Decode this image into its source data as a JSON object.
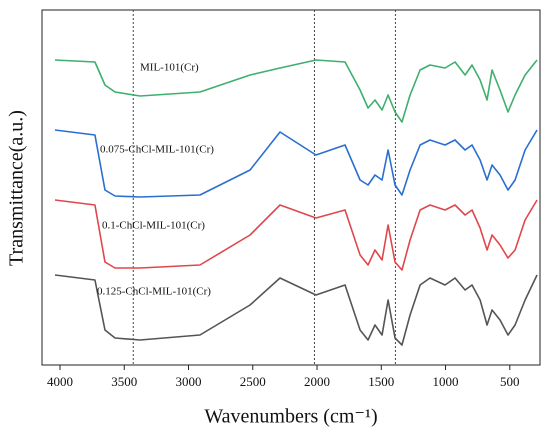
{
  "chart_data": {
    "type": "line",
    "x_label": "Wavenumbers (cm⁻¹)",
    "y_label": "Transmittance(a.u.)",
    "x": [
      4039,
      3728,
      3650,
      3572,
      3377,
      2911,
      2521,
      2288,
      2008,
      1782,
      1665,
      1603,
      1549,
      1494,
      1447,
      1393,
      1339,
      1276,
      1198,
      1121,
      1004,
      926,
      848,
      794,
      731,
      677,
      638,
      576,
      514,
      459,
      381,
      288
    ],
    "series": [
      {
        "name": "MIL-101(Cr)",
        "color": "#3daf6e",
        "values": [
          305,
          303,
          280,
          273,
          269,
          273,
          290,
          297,
          305,
          303,
          275,
          257,
          265,
          255,
          270,
          253,
          243,
          270,
          295,
          300,
          297,
          303,
          290,
          300,
          285,
          265,
          295,
          275,
          253,
          270,
          290,
          305
        ]
      },
      {
        "name": "0.075-ChCl-MIL-101(Cr)",
        "color": "#2a6fcf",
        "values": [
          235,
          230,
          175,
          169,
          168,
          170,
          195,
          233,
          210,
          220,
          185,
          180,
          190,
          185,
          215,
          180,
          170,
          195,
          220,
          225,
          220,
          225,
          215,
          220,
          205,
          185,
          200,
          190,
          175,
          185,
          215,
          235
        ]
      },
      {
        "name": "0.1-ChCl-MIL-101(Cr)",
        "color": "#e0474c",
        "values": [
          165,
          160,
          103,
          97,
          97,
          100,
          130,
          160,
          147,
          155,
          110,
          100,
          115,
          105,
          140,
          103,
          95,
          125,
          155,
          160,
          155,
          160,
          150,
          155,
          137,
          115,
          130,
          120,
          107,
          115,
          145,
          165
        ]
      },
      {
        "name": "0.125-ChCl-MIL-101(Cr)",
        "color": "#555555",
        "values": [
          90,
          85,
          35,
          27,
          25,
          30,
          60,
          87,
          70,
          80,
          35,
          25,
          40,
          30,
          65,
          27,
          20,
          50,
          80,
          87,
          80,
          87,
          75,
          80,
          65,
          40,
          55,
          45,
          30,
          40,
          65,
          90
        ]
      }
    ],
    "reference_lines": [
      3430,
      2020,
      1390
    ],
    "xlim": [
      4140,
      265
    ],
    "ylim": [
      0,
      355
    ],
    "xticks": [
      4000,
      3500,
      3000,
      2500,
      2000,
      1500,
      1000,
      500
    ]
  }
}
